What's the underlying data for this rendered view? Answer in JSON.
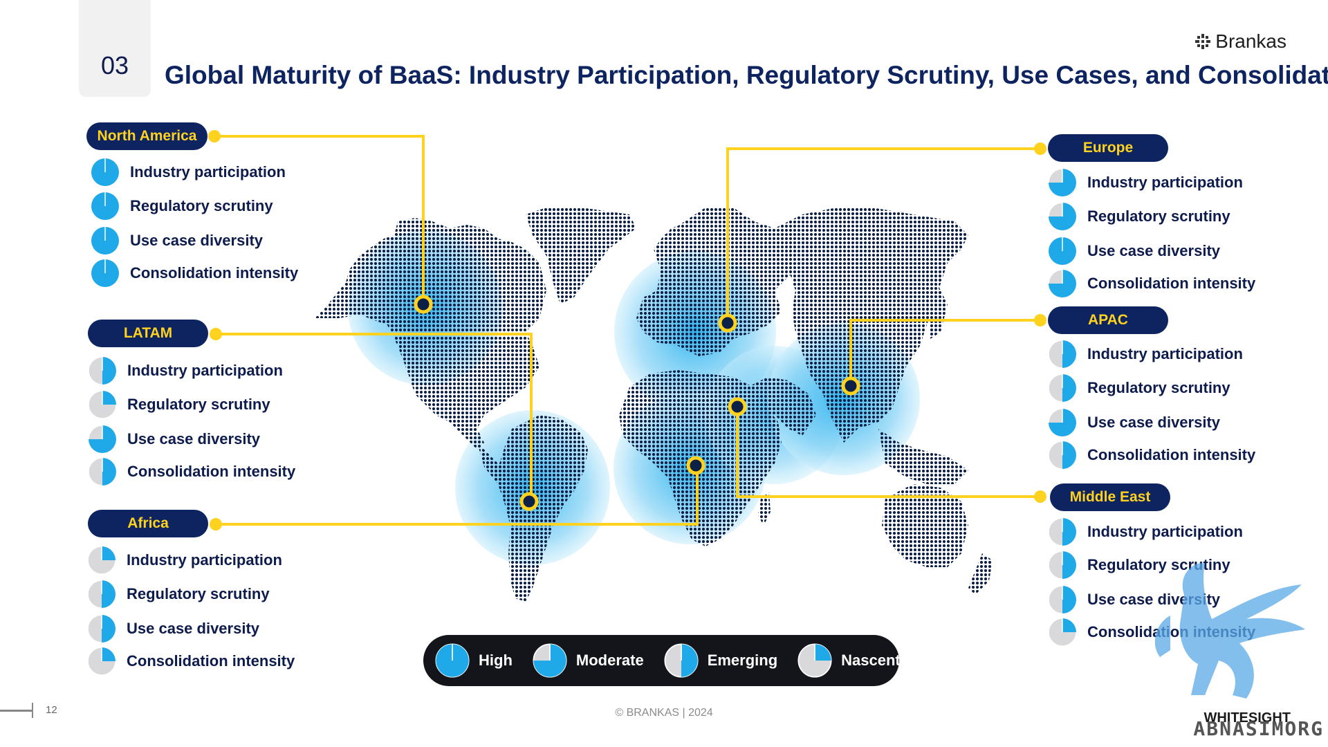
{
  "section_number": "03",
  "title": "Global Maturity of BaaS: Industry Participation, Regulatory Scrutiny, Use Cases, and Consolidation",
  "brand": "Brankas",
  "colors": {
    "navy": "#0d2461",
    "yellow": "#ffd21f",
    "accent_blue": "#1fa9e8",
    "grey": "#d9d9dc",
    "dot": "#0d2048"
  },
  "regions": [
    {
      "name": "North America",
      "metrics": [
        {
          "label": "Industry participation",
          "level": "High",
          "fill": 1.0
        },
        {
          "label": "Regulatory scrutiny",
          "level": "High",
          "fill": 1.0
        },
        {
          "label": "Use case diversity",
          "level": "High",
          "fill": 1.0
        },
        {
          "label": "Consolidation intensity",
          "level": "High",
          "fill": 1.0
        }
      ]
    },
    {
      "name": "LATAM",
      "metrics": [
        {
          "label": "Industry participation",
          "level": "Emerging",
          "fill": 0.5
        },
        {
          "label": "Regulatory scrutiny",
          "level": "Nascent",
          "fill": 0.25
        },
        {
          "label": "Use case diversity",
          "level": "Moderate",
          "fill": 0.75
        },
        {
          "label": "Consolidation intensity",
          "level": "Emerging",
          "fill": 0.5
        }
      ]
    },
    {
      "name": "Africa",
      "metrics": [
        {
          "label": "Industry participation",
          "level": "Nascent",
          "fill": 0.25
        },
        {
          "label": "Regulatory scrutiny",
          "level": "Emerging",
          "fill": 0.5
        },
        {
          "label": "Use case diversity",
          "level": "Emerging",
          "fill": 0.5
        },
        {
          "label": "Consolidation intensity",
          "level": "Nascent",
          "fill": 0.25
        }
      ]
    },
    {
      "name": "Europe",
      "metrics": [
        {
          "label": "Industry participation",
          "level": "Moderate",
          "fill": 0.75
        },
        {
          "label": "Regulatory scrutiny",
          "level": "Moderate",
          "fill": 0.75
        },
        {
          "label": "Use case diversity",
          "level": "High",
          "fill": 1.0
        },
        {
          "label": "Consolidation intensity",
          "level": "Moderate",
          "fill": 0.75
        }
      ]
    },
    {
      "name": "APAC",
      "metrics": [
        {
          "label": "Industry participation",
          "level": "Emerging",
          "fill": 0.5
        },
        {
          "label": "Regulatory scrutiny",
          "level": "Emerging",
          "fill": 0.5
        },
        {
          "label": "Use case diversity",
          "level": "Moderate",
          "fill": 0.75
        },
        {
          "label": "Consolidation intensity",
          "level": "Emerging",
          "fill": 0.5
        }
      ]
    },
    {
      "name": "Middle East",
      "metrics": [
        {
          "label": "Industry participation",
          "level": "Emerging",
          "fill": 0.5
        },
        {
          "label": "Regulatory scrutiny",
          "level": "Emerging",
          "fill": 0.5
        },
        {
          "label": "Use case diversity",
          "level": "Emerging",
          "fill": 0.5
        },
        {
          "label": "Consolidation intensity",
          "level": "Nascent",
          "fill": 0.25
        }
      ]
    }
  ],
  "legend": [
    {
      "label": "High",
      "fill": 1.0
    },
    {
      "label": "Moderate",
      "fill": 0.75
    },
    {
      "label": "Emerging",
      "fill": 0.5
    },
    {
      "label": "Nascent",
      "fill": 0.25
    }
  ],
  "page_number": "12",
  "footer": "© BRANKAS | 2024",
  "watermark_text": "ABNASIMORG",
  "watermark_brand": "WHITESIGHT"
}
